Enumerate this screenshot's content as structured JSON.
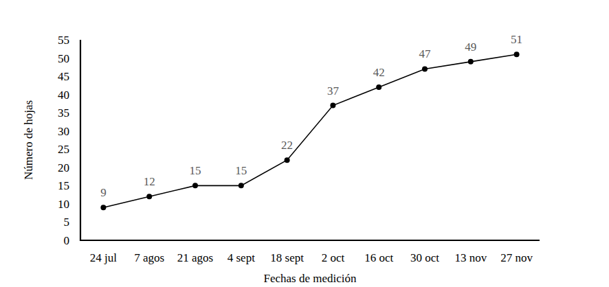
{
  "chart_data": {
    "type": "line",
    "x_label": "Fechas de medición",
    "y_label": "Número de hojas",
    "categories": [
      "24 jul",
      "7 agos",
      "21 agos",
      "4 sept",
      "18 sept",
      "2 oct",
      "16 oct",
      "30 oct",
      "13 nov",
      "27 nov"
    ],
    "values": [
      9,
      12,
      15,
      15,
      22,
      37,
      42,
      47,
      49,
      51
    ],
    "color": "#000000",
    "marker": "circle",
    "ylim": [
      0,
      55
    ],
    "yticks": [
      0,
      5,
      10,
      15,
      20,
      25,
      30,
      35,
      40,
      45,
      50,
      55
    ],
    "grid": false,
    "data_labels": true
  }
}
